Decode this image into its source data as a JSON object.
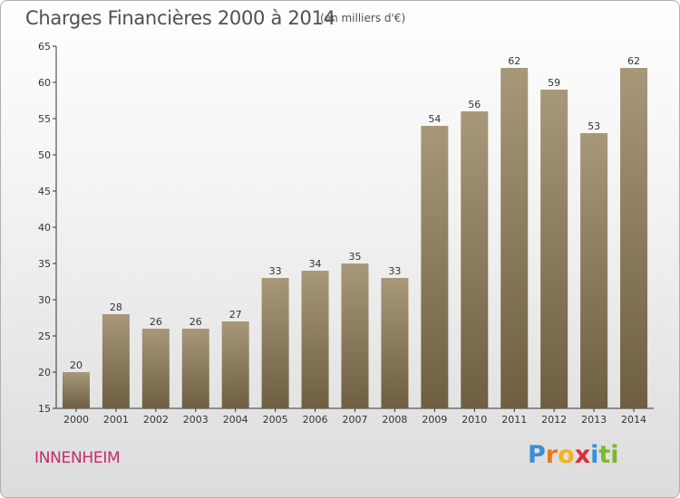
{
  "header": {
    "title": "Charges Financières 2000 à 2014",
    "subtitle": "(en milliers d'€)"
  },
  "footer": {
    "commune": "INNENHEIM",
    "logo": {
      "letters": [
        "P",
        "r",
        "o",
        "x",
        "i",
        "t",
        "i"
      ],
      "colors": [
        "#3a8ed8",
        "#e87a1e",
        "#f0b41e",
        "#d92e3a",
        "#3a8ed8",
        "#7cb82f",
        "#7cb82f"
      ]
    }
  },
  "chart_data": {
    "type": "bar",
    "categories": [
      "2000",
      "2001",
      "2002",
      "2003",
      "2004",
      "2005",
      "2006",
      "2007",
      "2008",
      "2009",
      "2010",
      "2011",
      "2012",
      "2013",
      "2014"
    ],
    "values": [
      20,
      28,
      26,
      26,
      27,
      33,
      34,
      35,
      33,
      54,
      56,
      62,
      59,
      53,
      62
    ],
    "title": "Charges Financières 2000 à 2014",
    "subtitle": "(en milliers d'€)",
    "xlabel": "",
    "ylabel": "",
    "ylim": [
      15,
      65
    ],
    "yticks": [
      15,
      20,
      25,
      30,
      35,
      40,
      45,
      50,
      55,
      60,
      65
    ],
    "grid": false,
    "legend": "none",
    "bar_color_top": "#a8987a",
    "bar_color_bottom": "#6e5e42"
  }
}
